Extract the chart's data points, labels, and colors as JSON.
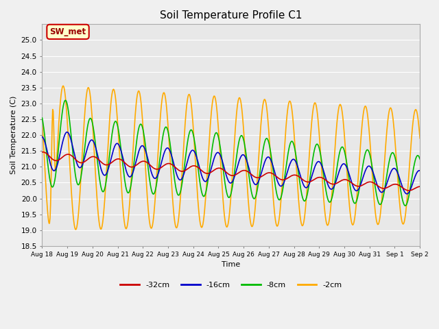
{
  "title": "Soil Temperature Profile C1",
  "xlabel": "Time",
  "ylabel": "Soil Temperature (C)",
  "annotation": "SW_met",
  "ylim": [
    18.5,
    25.5
  ],
  "yticks": [
    18.5,
    19.0,
    19.5,
    20.0,
    20.5,
    21.0,
    21.5,
    22.0,
    22.5,
    23.0,
    23.5,
    24.0,
    24.5,
    25.0
  ],
  "series": {
    "-32cm": {
      "color": "#cc0000",
      "linewidth": 1.2
    },
    "-16cm": {
      "color": "#0000cc",
      "linewidth": 1.2
    },
    "-8cm": {
      "color": "#00bb00",
      "linewidth": 1.2
    },
    "-2cm": {
      "color": "#ffaa00",
      "linewidth": 1.2
    }
  },
  "plot_bg_color": "#e8e8e8",
  "fig_bg_color": "#f0f0f0",
  "title_fontsize": 11,
  "annotation_facecolor": "#ffffcc",
  "annotation_edgecolor": "#cc0000",
  "annotation_textcolor": "#990000",
  "n_days": 15,
  "start_day": 18,
  "start_month": "Aug"
}
